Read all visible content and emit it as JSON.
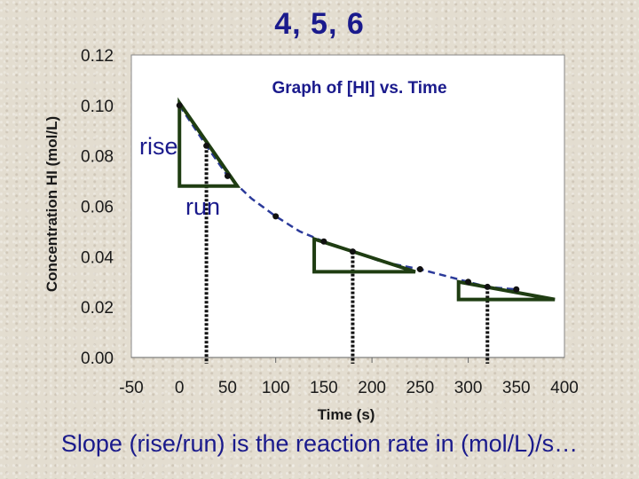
{
  "slide": {
    "title": "4, 5, 6",
    "caption": "Slope (rise/run) is the reaction rate in (mol/L)/s…"
  },
  "annotations": {
    "rise": "rise",
    "run": "run"
  },
  "colors": {
    "title_blue": "#1a1a8c",
    "triangle_green": "#1f3d12",
    "curve_blue": "#2b3a9a"
  },
  "chart_data": {
    "type": "scatter",
    "title": "Graph of [HI] vs. Time",
    "xlabel": "Time (s)",
    "ylabel": "Concentration HI (mol/L)",
    "xlim": [
      -50,
      400
    ],
    "ylim": [
      0.0,
      0.12
    ],
    "x_ticks": [
      "-50",
      "0",
      "50",
      "100",
      "150",
      "200",
      "250",
      "300",
      "350",
      "400"
    ],
    "y_ticks": [
      "0.12",
      "0.10",
      "0.08",
      "0.06",
      "0.04",
      "0.02",
      "0.00"
    ],
    "series": [
      {
        "name": "[HI]",
        "x": [
          0,
          28,
          50,
          100,
          150,
          180,
          250,
          300,
          320,
          350
        ],
        "y": [
          0.1,
          0.084,
          0.072,
          0.056,
          0.046,
          0.042,
          0.035,
          0.03,
          0.028,
          0.027
        ]
      }
    ],
    "trend_curve": {
      "x": [
        0,
        28,
        50,
        75,
        100,
        125,
        150,
        180,
        210,
        250,
        280,
        300,
        320,
        350
      ],
      "y": [
        0.1,
        0.084,
        0.072,
        0.063,
        0.056,
        0.05,
        0.046,
        0.042,
        0.038,
        0.035,
        0.032,
        0.03,
        0.028,
        0.027
      ]
    },
    "tangent_triangles": [
      {
        "x1": 0,
        "y1": 0.101,
        "x2": 60,
        "y2": 0.068
      },
      {
        "x1": 140,
        "y1": 0.047,
        "x2": 245,
        "y2": 0.034
      },
      {
        "x1": 290,
        "y1": 0.03,
        "x2": 390,
        "y2": 0.023
      }
    ],
    "reference_lines_x": [
      28,
      180,
      320
    ]
  }
}
